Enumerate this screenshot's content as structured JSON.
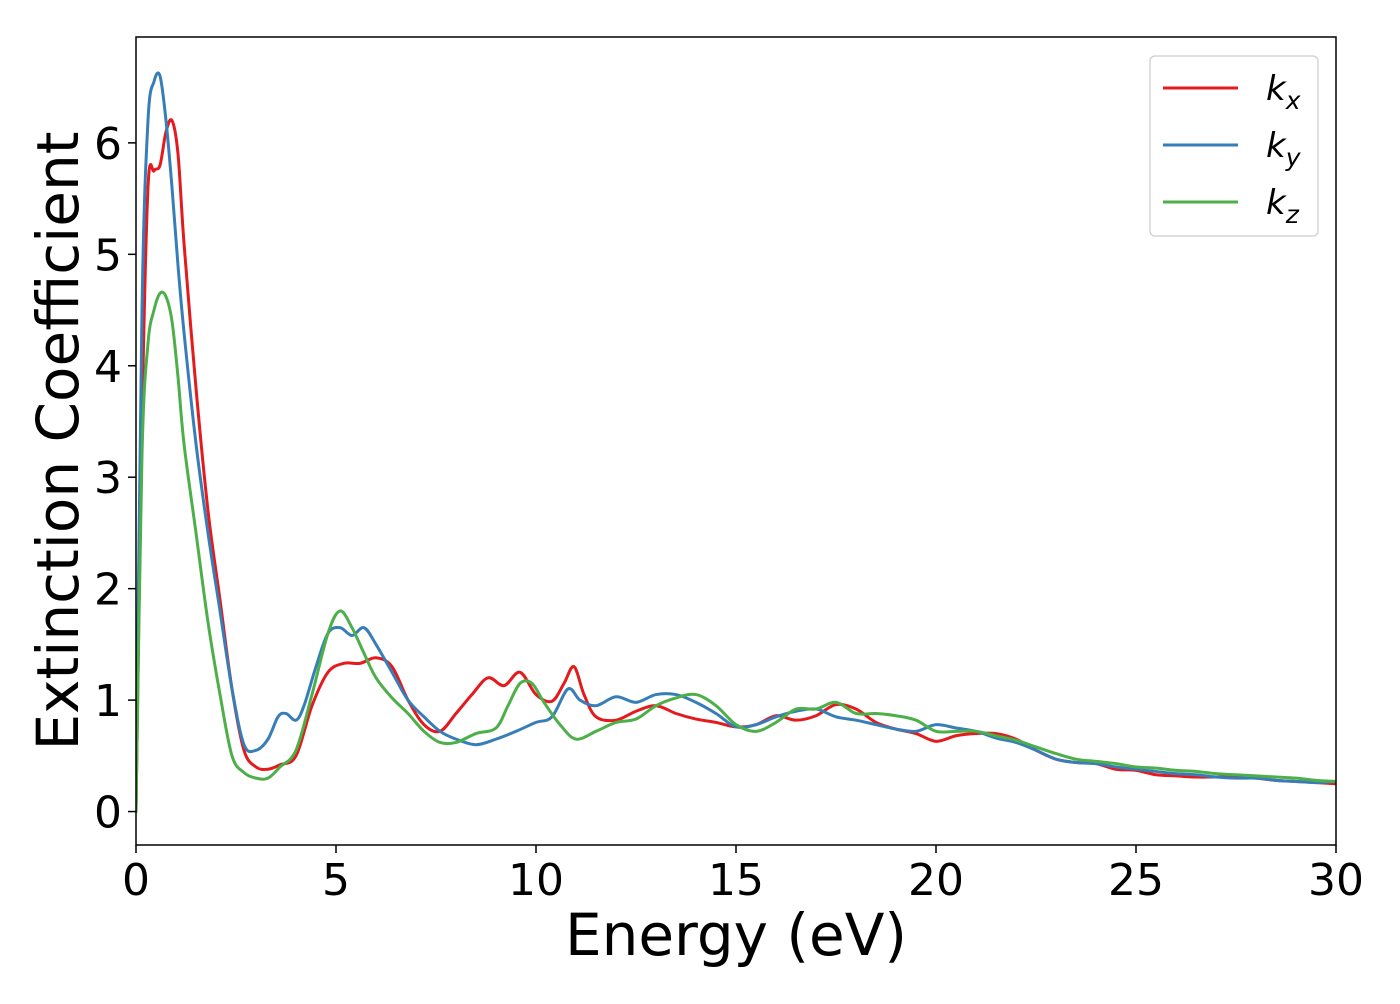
{
  "chart_data": {
    "type": "line",
    "xlabel": "Energy (eV)",
    "ylabel": "Extinction Coefficient",
    "xlim": [
      0,
      30
    ],
    "ylim": [
      -0.3,
      6.95
    ],
    "xticks": [
      "0",
      "5",
      "10",
      "15",
      "20",
      "25",
      "30"
    ],
    "yticks": [
      "0",
      "1",
      "2",
      "3",
      "4",
      "5",
      "6"
    ],
    "grid": false,
    "legend_position": "top-right",
    "series": [
      {
        "name": "k",
        "subscript": "x",
        "color": "#e41a1c",
        "x": [
          0,
          0.15,
          0.3,
          0.45,
          0.6,
          0.75,
          0.9,
          1.05,
          1.2,
          1.5,
          1.8,
          2.1,
          2.4,
          2.7,
          3.0,
          3.3,
          3.6,
          4.0,
          4.4,
          4.8,
          5.2,
          5.6,
          6.0,
          6.4,
          6.8,
          7.2,
          7.6,
          8.0,
          8.4,
          8.8,
          9.2,
          9.6,
          10.0,
          10.4,
          10.7,
          10.95,
          11.2,
          11.5,
          12.0,
          12.5,
          13.0,
          13.5,
          14.0,
          14.5,
          15.0,
          15.5,
          16.0,
          16.5,
          17.0,
          17.5,
          18.0,
          18.5,
          19.0,
          19.5,
          20.0,
          20.5,
          21.0,
          21.5,
          22.0,
          22.5,
          23.0,
          23.5,
          24.0,
          24.5,
          25.0,
          25.5,
          26.0,
          26.5,
          27.0,
          27.5,
          28.0,
          28.5,
          29.0,
          29.5,
          30.0
        ],
        "y": [
          0.0,
          3.5,
          5.6,
          5.75,
          5.8,
          6.1,
          6.2,
          5.9,
          5.1,
          3.8,
          2.7,
          1.9,
          1.1,
          0.55,
          0.4,
          0.38,
          0.42,
          0.5,
          0.95,
          1.25,
          1.33,
          1.33,
          1.38,
          1.3,
          1.0,
          0.78,
          0.72,
          0.88,
          1.05,
          1.2,
          1.13,
          1.25,
          1.05,
          0.99,
          1.15,
          1.3,
          1.05,
          0.85,
          0.82,
          0.9,
          0.95,
          0.88,
          0.83,
          0.8,
          0.76,
          0.78,
          0.86,
          0.82,
          0.86,
          0.96,
          0.92,
          0.8,
          0.74,
          0.7,
          0.63,
          0.68,
          0.7,
          0.7,
          0.65,
          0.55,
          0.47,
          0.44,
          0.43,
          0.38,
          0.37,
          0.33,
          0.32,
          0.31,
          0.31,
          0.31,
          0.3,
          0.28,
          0.27,
          0.26,
          0.25
        ]
      },
      {
        "name": "k",
        "subscript": "y",
        "color": "#377eb8",
        "x": [
          0,
          0.15,
          0.3,
          0.45,
          0.6,
          0.75,
          0.9,
          1.05,
          1.2,
          1.5,
          1.8,
          2.1,
          2.4,
          2.7,
          3.0,
          3.3,
          3.55,
          3.75,
          4.0,
          4.2,
          4.5,
          4.8,
          5.1,
          5.4,
          5.7,
          6.0,
          6.4,
          6.8,
          7.2,
          7.6,
          8.0,
          8.5,
          9.0,
          9.5,
          10.0,
          10.4,
          10.8,
          11.1,
          11.5,
          12.0,
          12.5,
          13.0,
          13.5,
          14.0,
          14.5,
          15.0,
          15.5,
          16.0,
          16.5,
          17.0,
          17.5,
          18.0,
          18.5,
          19.0,
          19.5,
          20.0,
          20.5,
          21.0,
          21.5,
          22.0,
          22.5,
          23.0,
          23.5,
          24.0,
          24.5,
          25.0,
          25.5,
          26.0,
          26.5,
          27.0,
          27.5,
          28.0,
          28.5,
          29.0,
          29.5,
          30.0
        ],
        "y": [
          0.0,
          4.5,
          6.2,
          6.55,
          6.6,
          6.2,
          5.6,
          4.9,
          4.3,
          3.3,
          2.5,
          1.8,
          1.1,
          0.6,
          0.55,
          0.65,
          0.85,
          0.88,
          0.82,
          0.95,
          1.3,
          1.6,
          1.65,
          1.58,
          1.65,
          1.5,
          1.25,
          1.0,
          0.85,
          0.72,
          0.65,
          0.6,
          0.65,
          0.72,
          0.8,
          0.85,
          1.1,
          1.0,
          0.95,
          1.03,
          0.98,
          1.05,
          1.05,
          0.98,
          0.88,
          0.76,
          0.78,
          0.85,
          0.9,
          0.92,
          0.85,
          0.82,
          0.78,
          0.74,
          0.72,
          0.78,
          0.75,
          0.72,
          0.66,
          0.62,
          0.55,
          0.47,
          0.44,
          0.43,
          0.4,
          0.38,
          0.36,
          0.34,
          0.33,
          0.31,
          0.3,
          0.3,
          0.28,
          0.27,
          0.26,
          0.27
        ]
      },
      {
        "name": "k",
        "subscript": "z",
        "color": "#4daf4a",
        "x": [
          0,
          0.15,
          0.3,
          0.45,
          0.6,
          0.75,
          0.9,
          1.05,
          1.2,
          1.5,
          1.8,
          2.1,
          2.4,
          2.7,
          3.0,
          3.3,
          3.6,
          4.0,
          4.4,
          4.8,
          5.1,
          5.4,
          5.7,
          6.0,
          6.4,
          6.8,
          7.2,
          7.6,
          8.0,
          8.5,
          9.0,
          9.3,
          9.6,
          9.9,
          10.2,
          10.6,
          11.0,
          11.5,
          12.0,
          12.5,
          13.0,
          13.5,
          14.0,
          14.5,
          15.0,
          15.5,
          16.0,
          16.5,
          17.0,
          17.5,
          18.0,
          18.5,
          19.0,
          19.5,
          20.0,
          20.5,
          21.0,
          21.5,
          22.0,
          22.5,
          23.0,
          23.5,
          24.0,
          24.5,
          25.0,
          25.5,
          26.0,
          26.5,
          27.0,
          27.5,
          28.0,
          28.5,
          29.0,
          29.5,
          30.0
        ],
        "y": [
          0.0,
          3.2,
          4.2,
          4.5,
          4.65,
          4.62,
          4.4,
          3.9,
          3.3,
          2.5,
          1.7,
          1.05,
          0.5,
          0.35,
          0.3,
          0.3,
          0.4,
          0.55,
          1.05,
          1.6,
          1.8,
          1.65,
          1.42,
          1.2,
          1.02,
          0.88,
          0.72,
          0.62,
          0.62,
          0.7,
          0.75,
          0.95,
          1.15,
          1.15,
          0.98,
          0.78,
          0.65,
          0.72,
          0.8,
          0.83,
          0.95,
          1.02,
          1.05,
          0.95,
          0.78,
          0.72,
          0.8,
          0.92,
          0.92,
          0.98,
          0.88,
          0.88,
          0.86,
          0.82,
          0.72,
          0.72,
          0.72,
          0.68,
          0.64,
          0.58,
          0.52,
          0.47,
          0.45,
          0.43,
          0.4,
          0.39,
          0.37,
          0.36,
          0.34,
          0.33,
          0.32,
          0.31,
          0.3,
          0.28,
          0.27
        ]
      }
    ]
  }
}
